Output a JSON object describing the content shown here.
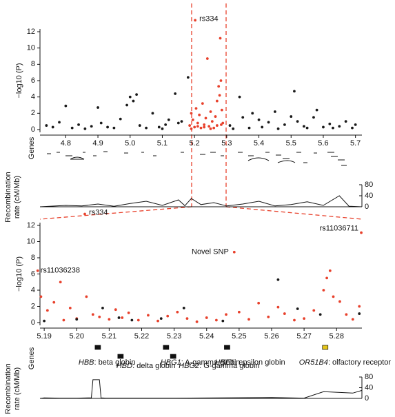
{
  "chart_data": [
    {
      "type": "scatter",
      "ylabel": "−log10 (P)",
      "xlim": [
        4.72,
        5.72
      ],
      "ylim": [
        0,
        12
      ],
      "xticks": [
        4.8,
        4.9,
        {
          "value": 5,
          "label": "5.0"
        },
        5.1,
        5.2,
        5.3,
        5.4,
        5.5,
        5.6,
        5.7
      ],
      "yticks": [
        0,
        2,
        4,
        6,
        8,
        10,
        12
      ],
      "series": [
        {
          "color": "#1a1a1a",
          "x": [
            4.74,
            4.76,
            4.78,
            4.8,
            4.82,
            4.84,
            4.86,
            4.88,
            4.9,
            4.91,
            4.93,
            4.95,
            4.97,
            4.99,
            5.0,
            5.01,
            5.02,
            5.03,
            5.05,
            5.07,
            5.09,
            5.1,
            5.11,
            5.12,
            5.14,
            5.15,
            5.16,
            5.18,
            5.31,
            5.32,
            5.34,
            5.35,
            5.37,
            5.38,
            5.4,
            5.41,
            5.43,
            5.45,
            5.46,
            5.48,
            5.5,
            5.51,
            5.52,
            5.54,
            5.55,
            5.57,
            5.58,
            5.6,
            5.62,
            5.63,
            5.65,
            5.67,
            5.69,
            5.7
          ],
          "values": [
            0.5,
            0.3,
            0.9,
            2.9,
            0.2,
            0.6,
            0.1,
            0.4,
            2.7,
            0.8,
            0.3,
            0.2,
            1.3,
            3.0,
            4.0,
            3.5,
            4.3,
            0.5,
            0.2,
            2.0,
            0.3,
            0.1,
            0.6,
            1.2,
            4.4,
            0.8,
            1.0,
            6.4,
            0.5,
            0.1,
            4.0,
            1.5,
            0.2,
            2.0,
            1.2,
            0.3,
            0.9,
            2.2,
            0.1,
            0.6,
            1.6,
            4.7,
            1.0,
            0.4,
            0.2,
            1.5,
            2.4,
            0.3,
            0.7,
            0.2,
            0.4,
            1.0,
            0.2,
            0.6
          ]
        },
        {
          "color": "#e8412c",
          "x": [
            5.185,
            5.19,
            5.195,
            5.2,
            5.205,
            5.21,
            5.215,
            5.22,
            5.225,
            5.23,
            5.235,
            5.24,
            5.245,
            5.25,
            5.255,
            5.26,
            5.265,
            5.27,
            5.275,
            5.28,
            5.282,
            5.285,
            5.288,
            5.19,
            5.21,
            5.23,
            5.25,
            5.27,
            5.278,
            5.283
          ],
          "values": [
            0.5,
            2.0,
            1.2,
            0.3,
            2.6,
            0.8,
            1.8,
            0.2,
            3.2,
            0.6,
            1.4,
            8.7,
            0.4,
            2.2,
            1.0,
            0.2,
            1.6,
            3.5,
            5.3,
            11.2,
            6.0,
            2.4,
            0.8,
            0.1,
            0.4,
            0.3,
            0.1,
            0.5,
            4.2,
            0.6
          ]
        }
      ],
      "annotations": [
        {
          "label": "rs334",
          "x": 5.202,
          "y": 13.4
        }
      ]
    },
    {
      "type": "genes",
      "label": "Genes"
    },
    {
      "type": "line",
      "ylabel_lines": [
        "Recombination",
        "rate (cM/Mb)"
      ],
      "xlim": [
        4.72,
        5.72
      ],
      "ylim": [
        0,
        80
      ],
      "yticks": [
        0,
        40,
        80
      ],
      "x": [
        4.72,
        4.75,
        4.8,
        4.85,
        4.9,
        4.95,
        5.0,
        5.05,
        5.1,
        5.15,
        5.17,
        5.19,
        5.22,
        5.26,
        5.3,
        5.35,
        5.4,
        5.45,
        5.5,
        5.55,
        5.6,
        5.65,
        5.68,
        5.72
      ],
      "values": [
        0,
        2,
        5,
        3,
        10,
        2,
        12,
        20,
        5,
        25,
        4,
        30,
        8,
        15,
        3,
        10,
        20,
        3,
        8,
        18,
        5,
        40,
        2,
        0
      ]
    },
    {
      "type": "scatter",
      "ylabel": "−log10 (P)",
      "xlim": [
        5.1887,
        5.2878
      ],
      "ylim": [
        0,
        12
      ],
      "xticks": [
        5.19,
        {
          "value": 5.2,
          "label": "5.20"
        },
        5.21,
        5.22,
        5.23,
        5.24,
        5.25,
        5.26,
        5.27,
        5.28
      ],
      "yticks": [
        0,
        2,
        4,
        6,
        8,
        10,
        12
      ],
      "series": [
        {
          "color": "#e8412c",
          "x": [
            5.189,
            5.191,
            5.193,
            5.195,
            5.196,
            5.198,
            5.2,
            5.203,
            5.205,
            5.207,
            5.21,
            5.212,
            5.214,
            5.216,
            5.219,
            5.222,
            5.225,
            5.228,
            5.231,
            5.234,
            5.237,
            5.24,
            5.243,
            5.246,
            5.25,
            5.253,
            5.256,
            5.259,
            5.262,
            5.264,
            5.267,
            5.27,
            5.273,
            5.276,
            5.277,
            5.278,
            5.279,
            5.281,
            5.283,
            5.285,
            5.287
          ],
          "values": [
            3.2,
            1.5,
            2.5,
            5.0,
            0.3,
            1.8,
            0.5,
            3.2,
            1.0,
            0.7,
            0.4,
            1.6,
            0.6,
            1.2,
            0.3,
            0.9,
            0.2,
            0.8,
            1.3,
            0.5,
            0.1,
            0.6,
            0.3,
            1.0,
            1.3,
            0.4,
            2.4,
            0.7,
            1.9,
            1.1,
            0.3,
            0.5,
            1.5,
            4.0,
            5.5,
            6.4,
            3.2,
            2.6,
            1.0,
            0.4,
            2.0
          ]
        },
        {
          "color": "#1a1a1a",
          "x": [
            5.19,
            5.2,
            5.208,
            5.213,
            5.217,
            5.226,
            5.233,
            5.245,
            5.262,
            5.268,
            5.275,
            5.287
          ],
          "values": [
            0.2,
            0.4,
            1.8,
            0.6,
            0.3,
            0.5,
            1.8,
            0.2,
            5.3,
            1.7,
            1.0,
            1.1
          ]
        }
      ],
      "annotations": [
        {
          "label": "rs334",
          "x": 5.2025,
          "y": 13.4
        },
        {
          "label": "Novel SNP",
          "x": 5.2485,
          "y": 8.7
        },
        {
          "label": "rs11036711",
          "x": 5.2876,
          "y": 11.1
        },
        {
          "label": "rs11036238",
          "x": 5.188,
          "y": 6.4
        }
      ]
    },
    {
      "type": "genes",
      "label": "Genes",
      "xlim": [
        5.1887,
        5.2878
      ],
      "genes": [
        {
          "symbol": "HBB",
          "description": ": beta globin",
          "x": 5.2065
        },
        {
          "symbol": "HBD",
          "description": ": delta globin",
          "x": 5.2135
        },
        {
          "symbol": "HBG1",
          "description": ": A-gamma globin",
          "x": 5.2275
        },
        {
          "symbol": "HBG2",
          "description": ": G-gamma globin",
          "x": 5.2297
        },
        {
          "symbol": "HBE1",
          "description": ": epsilon globin",
          "x": 5.2463
        },
        {
          "symbol": "OR51B4",
          "description": ": olfactory receptor",
          "x": 5.2765
        }
      ]
    },
    {
      "type": "line",
      "ylabel_lines": [
        "Recombination",
        "rate (cM/Mb)"
      ],
      "xlim": [
        5.1887,
        5.2878
      ],
      "ylim": [
        0,
        80
      ],
      "yticks": [
        0,
        40,
        80
      ],
      "x": [
        5.1887,
        5.19,
        5.195,
        5.2,
        5.2045,
        5.205,
        5.207,
        5.2075,
        5.209,
        5.23,
        5.26,
        5.27,
        5.276,
        5.285,
        5.2878
      ],
      "values": [
        0,
        2,
        1,
        1,
        2,
        70,
        70,
        2,
        1,
        1,
        3,
        1,
        25,
        20,
        30
      ]
    }
  ]
}
